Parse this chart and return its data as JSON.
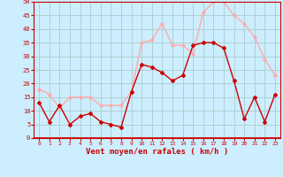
{
  "x": [
    0,
    1,
    2,
    3,
    4,
    5,
    6,
    7,
    8,
    9,
    10,
    11,
    12,
    13,
    14,
    15,
    16,
    17,
    18,
    19,
    20,
    21,
    22,
    23
  ],
  "wind_mean": [
    13,
    6,
    12,
    5,
    8,
    9,
    6,
    5,
    4,
    17,
    27,
    26,
    24,
    21,
    23,
    34,
    35,
    35,
    33,
    21,
    7,
    15,
    6,
    16
  ],
  "wind_gust": [
    18,
    16,
    11,
    15,
    15,
    15,
    12,
    12,
    12,
    17,
    35,
    36,
    42,
    34,
    34,
    31,
    46,
    50,
    50,
    45,
    42,
    37,
    29,
    23
  ],
  "bg_color": "#cceeff",
  "grid_color": "#aacccc",
  "mean_color": "#cc0000",
  "gust_color": "#ffaaaa",
  "xlabel": "Vent moyen/en rafales ( km/h )",
  "xlabel_color": "#cc0000",
  "tick_color": "#cc0000",
  "ylim": [
    0,
    50
  ],
  "yticks": [
    0,
    5,
    10,
    15,
    20,
    25,
    30,
    35,
    40,
    45,
    50
  ]
}
